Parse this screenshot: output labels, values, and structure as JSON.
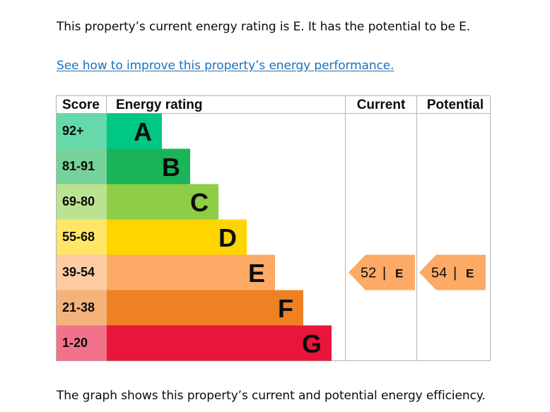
{
  "summary": {
    "text": "This property’s current energy rating is E. It has the potential to be E."
  },
  "improve_link": {
    "label": "See how to improve this property’s energy performance."
  },
  "table": {
    "headers": {
      "score": "Score",
      "rating": "Energy rating",
      "current": "Current",
      "potential": "Potential"
    },
    "bands": [
      {
        "score": "92+",
        "letter": "A",
        "color": "#00c781",
        "score_bg": "#66d9ab"
      },
      {
        "score": "81-91",
        "letter": "B",
        "color": "#19b459",
        "score_bg": "#75d29b"
      },
      {
        "score": "69-80",
        "letter": "C",
        "color": "#8dce46",
        "score_bg": "#bbe290"
      },
      {
        "score": "55-68",
        "letter": "D",
        "color": "#ffd500",
        "score_bg": "#ffe666"
      },
      {
        "score": "39-54",
        "letter": "E",
        "color": "#fcaa65",
        "score_bg": "#fdcca3"
      },
      {
        "score": "21-38",
        "letter": "F",
        "color": "#ef8023",
        "score_bg": "#f5b37b"
      },
      {
        "score": "1-20",
        "letter": "G",
        "color": "#e9153b",
        "score_bg": "#f27389"
      }
    ],
    "current": {
      "value": "52",
      "separator": "|",
      "letter": "E",
      "band_index": 4,
      "color": "#fcaa65"
    },
    "potential": {
      "value": "54",
      "separator": "|",
      "letter": "E",
      "band_index": 4,
      "color": "#fcaa65"
    }
  },
  "footer": {
    "text": "The graph shows this property’s current and potential energy efficiency."
  }
}
